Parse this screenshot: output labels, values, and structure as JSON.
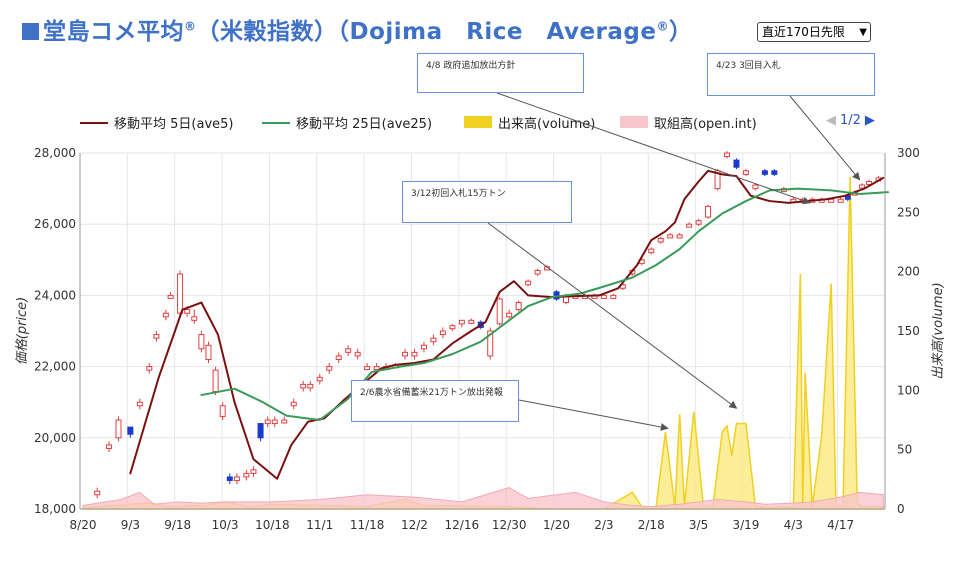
{
  "title": {
    "main": "堂島コメ平均",
    "reg1": "®",
    "paren": "（米穀指数）（Dojima　Rice　Average",
    "reg2": "®",
    "close": "）"
  },
  "period_select": {
    "value": "直近170日先限"
  },
  "legend": {
    "ave5": "移動平均 5日(ave5)",
    "ave25": "移動平均 25日(ave25)",
    "volume": "出来高(volume)",
    "openint": "取組高(open.int)"
  },
  "pager": {
    "prev_icon": "◀",
    "label": "1/2",
    "next_icon": "▶"
  },
  "colors": {
    "title": "#3f72c6",
    "ave5": "#7a1010",
    "ave25": "#3a9a5a",
    "volume": "#f0d020",
    "openint": "#f7c6cc",
    "candle_up": "#e04040",
    "candle_down": "#1a3ad0",
    "annotation_border": "#6a94d6"
  },
  "annotations": [
    {
      "text": "4/8 政府追加放出方針"
    },
    {
      "text": "4/23 3回目入札"
    },
    {
      "text": "3/12初回入札15万トン"
    },
    {
      "text": "2/6農水省備蓄米21万トン放出発報"
    }
  ],
  "chart_data": {
    "type": "line",
    "ylabel": "価格(price)",
    "y2label": "出来高(volume)",
    "ylim": [
      18000,
      28000
    ],
    "y2lim": [
      0,
      300
    ],
    "yticks": [
      "18,000",
      "20,000",
      "22,000",
      "24,000",
      "26,000",
      "28,000"
    ],
    "y2ticks": [
      "0",
      "50",
      "100",
      "150",
      "200",
      "250",
      "300"
    ],
    "xticks": [
      "8/20",
      "9/3",
      "9/18",
      "10/3",
      "10/18",
      "11/1",
      "11/18",
      "12/2",
      "12/16",
      "12/30",
      "1/20",
      "2/3",
      "2/18",
      "3/5",
      "3/19",
      "4/3",
      "4/17"
    ],
    "grid": true,
    "series": [
      {
        "name": "移動平均 5日(ave5)",
        "kind": "line",
        "x": [
          1.0,
          1.6,
          2.1,
          2.5,
          2.85,
          3.2,
          3.6,
          4.1,
          4.4,
          4.75,
          5.1,
          5.5,
          5.9,
          6.3,
          6.6,
          7.0,
          7.4,
          7.8,
          8.2,
          8.5,
          8.8,
          9.1,
          9.4,
          9.9,
          10.4,
          10.9,
          11.3,
          11.7,
          12.0,
          12.3,
          12.5,
          12.7,
          13.0,
          13.2,
          13.5,
          13.8,
          14.1,
          14.5,
          14.9,
          15.3,
          15.7,
          16.1,
          16.5,
          16.9
        ],
        "y": [
          19000,
          21700,
          23600,
          23800,
          22900,
          21000,
          19400,
          18850,
          19800,
          20450,
          20550,
          21050,
          21500,
          21950,
          22050,
          22100,
          22200,
          22650,
          23000,
          23250,
          24100,
          24400,
          24000,
          23950,
          23980,
          24000,
          24200,
          24850,
          25550,
          25800,
          26050,
          26700,
          27200,
          27500,
          27400,
          27350,
          26800,
          26650,
          26600,
          26650,
          26700,
          26800,
          27000,
          27300
        ]
      },
      {
        "name": "移動平均 25日(ave25)",
        "kind": "line",
        "x": [
          2.5,
          3.2,
          3.8,
          4.3,
          5.0,
          5.6,
          6.1,
          6.7,
          7.2,
          7.8,
          8.4,
          8.9,
          9.4,
          9.9,
          10.5,
          11.0,
          11.6,
          12.1,
          12.6,
          13.0,
          13.5,
          14.0,
          14.5,
          15.1,
          15.8,
          16.4,
          17.0
        ],
        "y": [
          21200,
          21380,
          21000,
          20620,
          20500,
          21100,
          21850,
          22000,
          22100,
          22350,
          22700,
          23200,
          23700,
          23950,
          24050,
          24250,
          24500,
          24850,
          25300,
          25800,
          26300,
          26650,
          26950,
          27000,
          26950,
          26850,
          26900
        ]
      },
      {
        "name": "出来高(volume)",
        "kind": "area",
        "x": [
          0.0,
          1.4,
          1.8,
          2.6,
          3.0,
          3.5,
          4.0,
          6.0,
          6.8,
          7.2,
          9.0,
          9.2,
          10.0,
          11.0,
          11.6,
          11.8,
          12.0,
          12.1,
          12.3,
          12.5,
          12.6,
          12.7,
          12.9,
          13.1,
          13.3,
          13.5,
          13.6,
          13.7,
          13.8,
          14.0,
          14.2,
          14.5,
          14.8,
          15.0,
          15.15,
          15.2,
          15.25,
          15.4,
          15.6,
          15.8,
          15.9,
          16.05,
          16.2,
          16.35,
          16.45,
          16.7,
          16.9
        ],
        "y": [
          1,
          5,
          2,
          3,
          6,
          2,
          4,
          2,
          8,
          3,
          2,
          1,
          0,
          0,
          14,
          2,
          0,
          1,
          65,
          2,
          80,
          3,
          82,
          3,
          2,
          65,
          70,
          45,
          72,
          72,
          2,
          1,
          2,
          1,
          198,
          2,
          115,
          2,
          62,
          190,
          3,
          2,
          280,
          5,
          2,
          2,
          2
        ]
      },
      {
        "name": "取組高(open.int)",
        "kind": "area",
        "x": [
          0.0,
          0.8,
          1.2,
          1.5,
          2.0,
          2.5,
          3.0,
          4.0,
          5.0,
          6.0,
          7.0,
          8.0,
          9.0,
          9.4,
          10.0,
          10.4,
          11.0,
          11.6,
          12.0,
          12.6,
          13.0,
          13.4,
          14.0,
          14.4,
          15.0,
          15.4,
          16.0,
          16.4,
          16.9
        ],
        "y": [
          3,
          8,
          14,
          4,
          6,
          5,
          6,
          6,
          8,
          12,
          10,
          6,
          18,
          9,
          12,
          14,
          6,
          3,
          2,
          4,
          6,
          8,
          6,
          4,
          5,
          6,
          10,
          14,
          12
        ]
      },
      {
        "name": "candles",
        "kind": "candle",
        "x": [
          0.3,
          0.55,
          0.75,
          1.0,
          1.2,
          1.4,
          1.55,
          1.75,
          1.85,
          2.05,
          2.2,
          2.35,
          2.5,
          2.65,
          2.8,
          2.95,
          3.1,
          3.25,
          3.45,
          3.6,
          3.75,
          3.9,
          4.05,
          4.25,
          4.45,
          4.65,
          4.8,
          5.0,
          5.2,
          5.4,
          5.6,
          5.8,
          6.0,
          6.2,
          6.4,
          6.6,
          6.8,
          7.0,
          7.2,
          7.4,
          7.6,
          7.8,
          8.0,
          8.2,
          8.4,
          8.6,
          8.8,
          9.0,
          9.2,
          9.4,
          9.6,
          9.8,
          10.0,
          10.2,
          10.4,
          10.6,
          10.8,
          11.0,
          11.2,
          11.4,
          11.6,
          11.8,
          12.0,
          12.2,
          12.4,
          12.6,
          12.8,
          13.0,
          13.2,
          13.4,
          13.6,
          13.8,
          14.0,
          14.2,
          14.4,
          14.6,
          14.8,
          15.0,
          15.2,
          15.4,
          15.6,
          15.8,
          16.0,
          16.15,
          16.3,
          16.45,
          16.6,
          16.8
        ],
        "open": [
          18400,
          19700,
          20000,
          20300,
          20900,
          21900,
          22800,
          23400,
          24000,
          23500,
          23500,
          23300,
          22500,
          22200,
          21300,
          20600,
          18900,
          18800,
          18900,
          19000,
          20400,
          20400,
          20400,
          20500,
          20900,
          21400,
          21400,
          21600,
          21900,
          22200,
          22400,
          22300,
          22000,
          22000,
          22000,
          22000,
          22300,
          22300,
          22500,
          22700,
          22900,
          23100,
          23200,
          23300,
          23250,
          22300,
          23200,
          23400,
          23600,
          24300,
          24600,
          24800,
          24100,
          23800,
          24000,
          24000,
          24000,
          24000,
          24000,
          24200,
          24600,
          24900,
          25200,
          25500,
          25700,
          25700,
          26000,
          26000,
          26200,
          27000,
          27900,
          27800,
          27400,
          27000,
          27500,
          27500,
          27000,
          26700,
          26700,
          26700,
          26700,
          26700,
          26700,
          26800,
          26900,
          27100,
          27200,
          27300
        ],
        "close": [
          18500,
          19800,
          20500,
          20100,
          21000,
          22000,
          22900,
          23500,
          24000,
          24600,
          23600,
          23400,
          22900,
          22600,
          21900,
          20900,
          18800,
          18900,
          19000,
          19100,
          20000,
          20500,
          20500,
          20500,
          21000,
          21500,
          21500,
          21700,
          22000,
          22300,
          22500,
          22400,
          22000,
          22000,
          22000,
          22050,
          22400,
          22400,
          22600,
          22800,
          23000,
          23150,
          23300,
          23300,
          23100,
          23000,
          23900,
          23500,
          23800,
          24400,
          24700,
          24800,
          23900,
          24000,
          24000,
          24000,
          24000,
          24000,
          24000,
          24300,
          24700,
          25000,
          25300,
          25600,
          25700,
          25700,
          26000,
          26100,
          26500,
          27500,
          28000,
          27600,
          27500,
          27100,
          27400,
          27400,
          27000,
          26700,
          26700,
          26700,
          26700,
          26700,
          26700,
          26700,
          26900,
          27100,
          27200,
          27300
        ],
        "high": [
          18600,
          19900,
          20600,
          20300,
          21100,
          22100,
          23000,
          23600,
          24100,
          24700,
          23700,
          23600,
          23000,
          22700,
          22000,
          21000,
          19000,
          19000,
          19100,
          19200,
          20400,
          20600,
          20600,
          20600,
          21100,
          21600,
          21600,
          21800,
          22100,
          22400,
          22600,
          22500,
          22100,
          22100,
          22100,
          22100,
          22500,
          22500,
          22700,
          22900,
          23100,
          23200,
          23300,
          23350,
          23300,
          23100,
          23950,
          23600,
          23850,
          24450,
          24750,
          24850,
          24150,
          24050,
          24050,
          24050,
          24050,
          24050,
          24050,
          24350,
          24750,
          25050,
          25350,
          25650,
          25750,
          25750,
          26050,
          26150,
          26550,
          27550,
          28050,
          27850,
          27550,
          27150,
          27550,
          27550,
          27050,
          26750,
          26750,
          26750,
          26750,
          26750,
          26750,
          26850,
          26950,
          27150,
          27250,
          27350
        ],
        "low": [
          18300,
          19600,
          19900,
          20000,
          20800,
          21800,
          22700,
          23300,
          23900,
          23400,
          23400,
          23200,
          22400,
          22100,
          21200,
          20500,
          18700,
          18700,
          18800,
          18900,
          19900,
          20300,
          20300,
          20400,
          20800,
          21300,
          21300,
          21500,
          21800,
          22100,
          22300,
          22200,
          21900,
          21900,
          21900,
          21950,
          22200,
          22200,
          22400,
          22600,
          22800,
          23000,
          23100,
          23200,
          23050,
          22200,
          23150,
          23350,
          23550,
          24250,
          24550,
          24750,
          23850,
          23750,
          23950,
          23950,
          23950,
          23950,
          23950,
          24150,
          24550,
          24850,
          25150,
          25450,
          25650,
          25650,
          25950,
          25950,
          26150,
          26950,
          27850,
          27550,
          27350,
          26950,
          27350,
          27350,
          26950,
          26650,
          26650,
          26650,
          26650,
          26650,
          26650,
          26650,
          26850,
          27050,
          27150,
          27250
        ]
      }
    ]
  }
}
